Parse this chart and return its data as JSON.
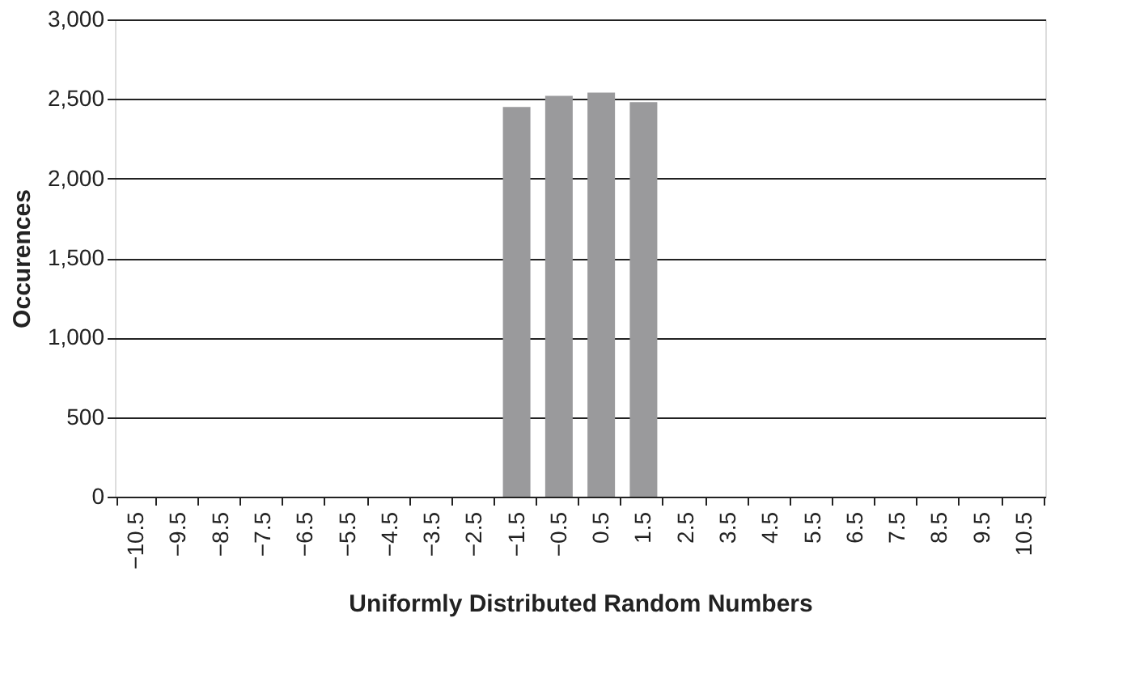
{
  "chart_data": {
    "type": "bar",
    "xlabel": "Uniformly Distributed Random Numbers",
    "ylabel": "Occurences",
    "categories": [
      "−10.5",
      "−9.5",
      "−8.5",
      "−7.5",
      "−6.5",
      "−5.5",
      "−4.5",
      "−3.5",
      "−2.5",
      "−1.5",
      "−0.5",
      "0.5",
      "1.5",
      "2.5",
      "3.5",
      "4.5",
      "5.5",
      "6.5",
      "7.5",
      "8.5",
      "9.5",
      "10.5"
    ],
    "values": [
      0,
      0,
      0,
      0,
      0,
      0,
      0,
      0,
      0,
      2450,
      2520,
      2540,
      2480,
      0,
      0,
      0,
      0,
      0,
      0,
      0,
      0,
      0
    ],
    "color": "#9a9a9c",
    "ylim": [
      0,
      3000
    ],
    "yticks": [
      0,
      500,
      {
        "value": 1000,
        "label": "1,000"
      },
      {
        "value": 1500,
        "label": "1,500"
      },
      {
        "value": 2000,
        "label": "2,000"
      },
      {
        "value": 2500,
        "label": "2,500"
      },
      {
        "value": 3000,
        "label": "3,000"
      }
    ],
    "grid": "y"
  }
}
